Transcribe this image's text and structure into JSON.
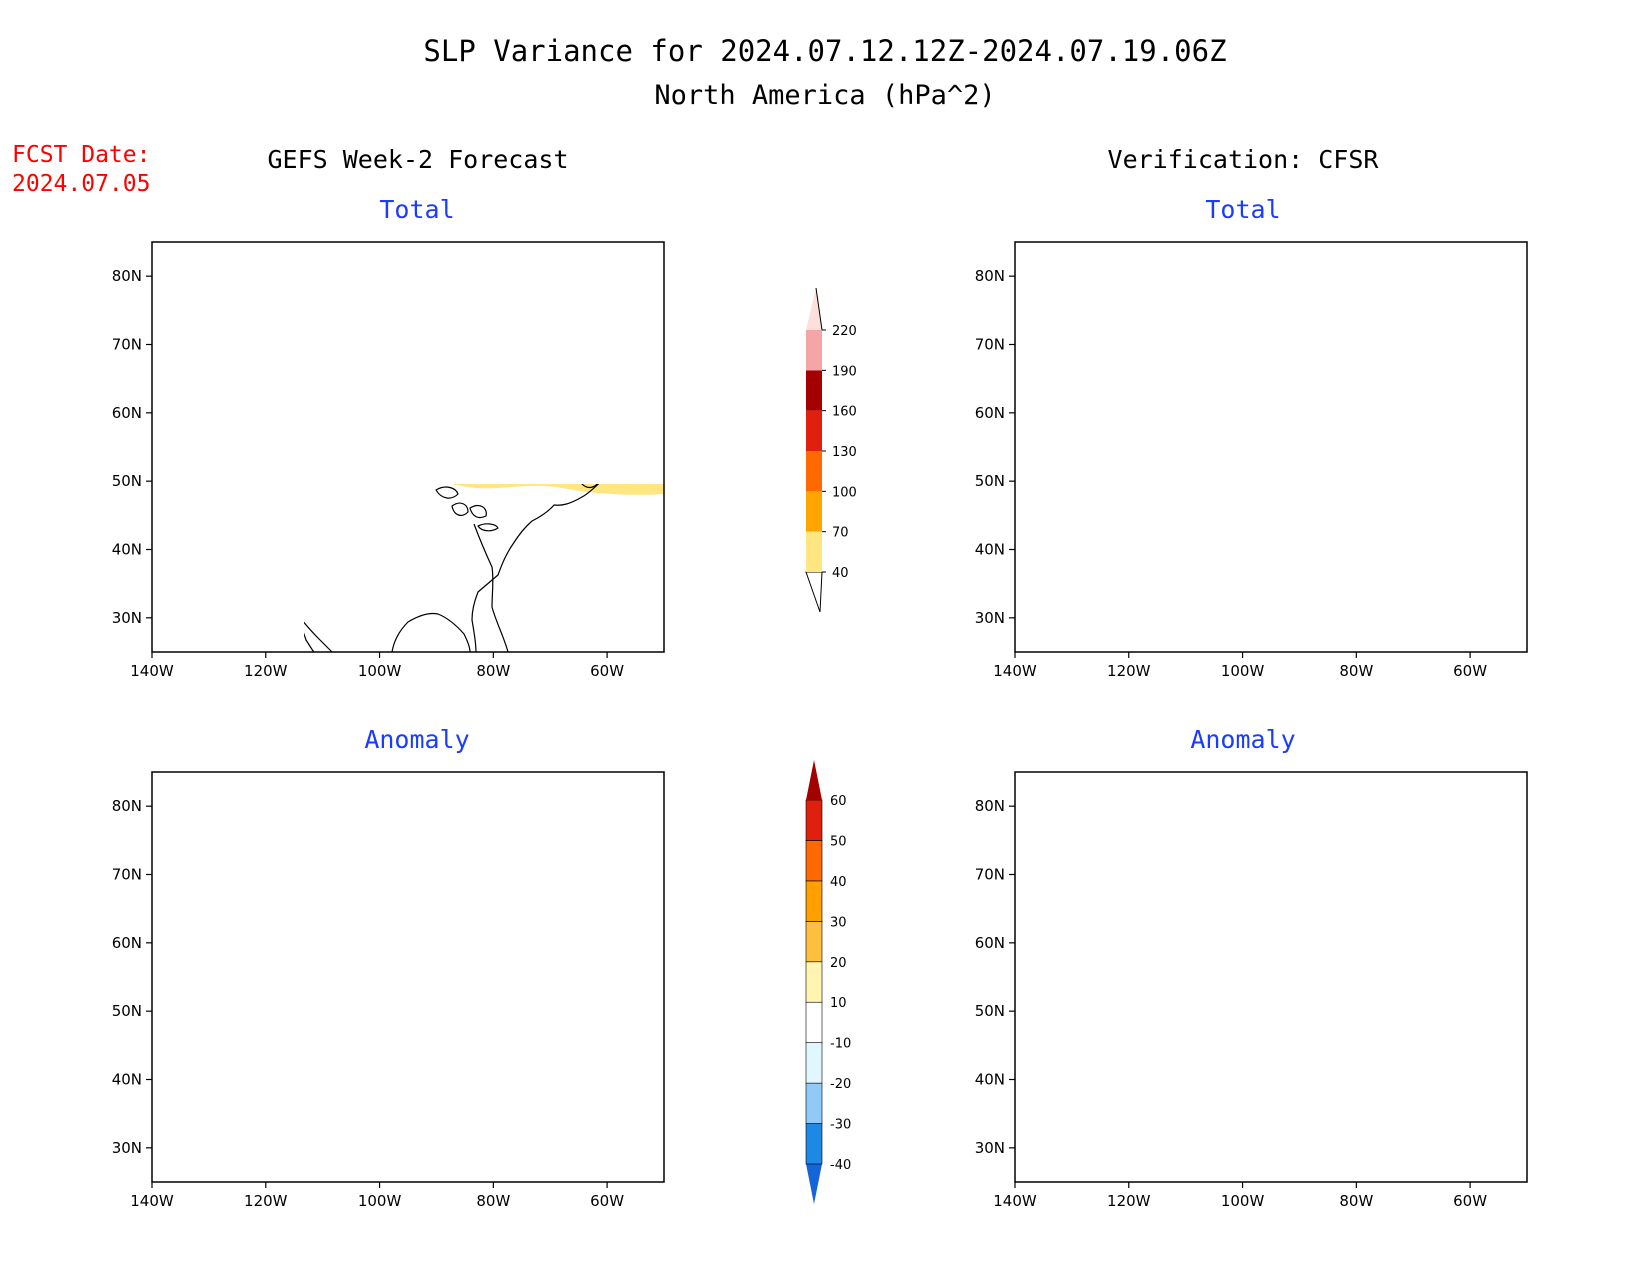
{
  "header": {
    "title_line1": "SLP Variance for 2024.07.12.12Z-2024.07.19.06Z",
    "title_line2": "North America (hPa^2)",
    "fcst_label": "FCST Date:",
    "fcst_date": "2024.07.05",
    "left_heading": "GEFS Week-2 Forecast",
    "right_heading": "Verification: CFSR"
  },
  "panels": [
    {
      "id": "fcst-total",
      "subtitle": "Total"
    },
    {
      "id": "verif-total",
      "subtitle": "Total"
    },
    {
      "id": "fcst-anomaly",
      "subtitle": "Anomaly"
    },
    {
      "id": "verif-anomaly",
      "subtitle": "Anomaly"
    }
  ],
  "map_axes": {
    "lon_ticks": [
      "140W",
      "120W",
      "100W",
      "80W",
      "60W"
    ],
    "lat_ticks": [
      "80N",
      "70N",
      "60N",
      "50N",
      "40N",
      "30N"
    ],
    "lon_range": [
      -140,
      -50
    ],
    "lat_range": [
      25,
      85
    ]
  },
  "colorbars": {
    "total": {
      "labels": [
        "40",
        "70",
        "100",
        "130",
        "160",
        "190",
        "220"
      ],
      "colors": [
        "#ffe680",
        "#ffa500",
        "#ff6a00",
        "#e0200c",
        "#a50000",
        "#f4a6a6",
        "#fde0dc"
      ]
    },
    "anomaly": {
      "labels": [
        "-40",
        "-30",
        "-20",
        "-10",
        "10",
        "20",
        "30",
        "40",
        "50",
        "60"
      ],
      "colors": [
        "#1565d8",
        "#1e88e5",
        "#90caf9",
        "#e0f7ff",
        "#ffffff",
        "#fff5b0",
        "#ffc040",
        "#ffa000",
        "#ff6a00",
        "#e0200c",
        "#a50000"
      ]
    }
  },
  "colors": {
    "title_red": "#ff0000",
    "subtitle_blue": "#1a3cff"
  }
}
